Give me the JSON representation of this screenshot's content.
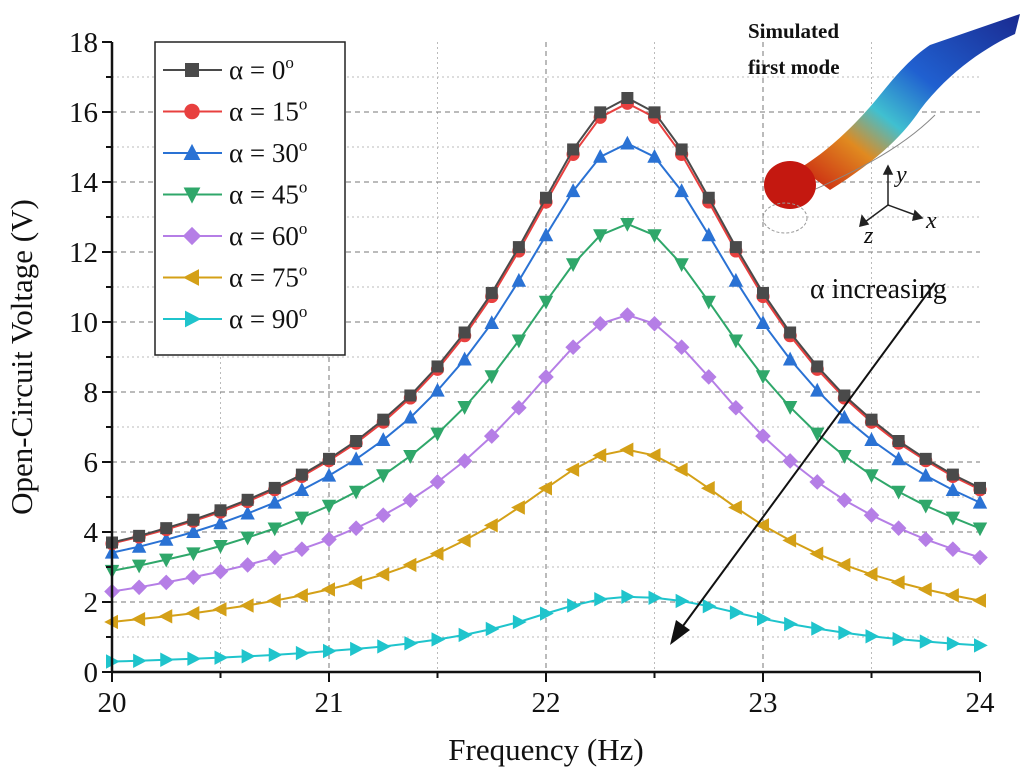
{
  "chart_data": {
    "type": "line",
    "xlabel": "Frequency (Hz)",
    "ylabel": "Open-Circuit Voltage (V)",
    "xlim": [
      20,
      24
    ],
    "ylim": [
      0,
      18
    ],
    "xticks": [
      "20",
      "21",
      "22",
      "23",
      "24"
    ],
    "yticks": [
      "0",
      "2",
      "4",
      "6",
      "8",
      "10",
      "12",
      "14",
      "16",
      "18"
    ],
    "grid": true,
    "legend_placement": "top-left",
    "x": [
      20,
      20.125,
      20.25,
      20.375,
      20.5,
      20.625,
      20.75,
      20.875,
      21,
      21.125,
      21.25,
      21.375,
      21.5,
      21.625,
      21.75,
      21.875,
      22,
      22.125,
      22.25,
      22.375,
      22.5,
      22.625,
      22.75,
      22.875,
      23,
      23.125,
      23.25,
      23.375,
      23.5,
      23.625,
      23.75,
      23.875,
      24
    ],
    "series": [
      {
        "name": "α = 0°",
        "label": "α = 0",
        "sup": "o",
        "color": "#4a4a4a",
        "marker": "square",
        "values": [
          3.7,
          3.89,
          4.11,
          4.35,
          4.62,
          4.92,
          5.26,
          5.64,
          6.09,
          6.6,
          7.21,
          7.9,
          8.73,
          9.7,
          10.83,
          12.14,
          13.55,
          14.93,
          15.99,
          16.4,
          15.99,
          14.93,
          13.55,
          12.14,
          10.83,
          9.7,
          8.73,
          7.9,
          7.21,
          6.6,
          6.09,
          5.64,
          5.26
        ]
      },
      {
        "name": "α = 15°",
        "label": "α = 15",
        "sup": "o",
        "color": "#e8403f",
        "marker": "circle",
        "values": [
          3.67,
          3.86,
          4.07,
          4.31,
          4.57,
          4.87,
          5.21,
          5.59,
          6.04,
          6.54,
          7.14,
          7.83,
          8.65,
          9.61,
          10.73,
          12.03,
          13.43,
          14.79,
          15.85,
          16.25,
          15.85,
          14.79,
          13.43,
          12.03,
          10.73,
          9.61,
          8.65,
          7.83,
          7.14,
          6.54,
          6.04,
          5.59,
          5.21
        ]
      },
      {
        "name": "α = 30°",
        "label": "α = 30",
        "sup": "o",
        "color": "#2a72d4",
        "marker": "triangle-up",
        "values": [
          3.41,
          3.58,
          3.78,
          4.0,
          4.25,
          4.53,
          4.84,
          5.2,
          5.61,
          6.08,
          6.63,
          7.27,
          8.04,
          8.93,
          9.97,
          11.18,
          12.48,
          13.74,
          14.72,
          15.1,
          14.72,
          13.74,
          12.48,
          11.18,
          9.97,
          8.93,
          8.04,
          7.27,
          6.63,
          6.08,
          5.61,
          5.2,
          4.84
        ]
      },
      {
        "name": "α = 45°",
        "label": "α = 45",
        "sup": "o",
        "color": "#2fa76a",
        "marker": "triangle-down",
        "values": [
          2.89,
          3.04,
          3.21,
          3.39,
          3.6,
          3.84,
          4.1,
          4.41,
          4.75,
          5.15,
          5.62,
          6.17,
          6.81,
          7.57,
          8.45,
          9.47,
          10.58,
          11.65,
          12.48,
          12.8,
          12.48,
          11.65,
          10.58,
          9.47,
          8.45,
          7.57,
          6.81,
          6.17,
          5.62,
          5.15,
          4.75,
          4.41,
          4.1
        ]
      },
      {
        "name": "α = 60°",
        "label": "α = 60",
        "sup": "o",
        "color": "#b57ee6",
        "marker": "diamond",
        "values": [
          2.3,
          2.42,
          2.56,
          2.71,
          2.87,
          3.06,
          3.27,
          3.51,
          3.79,
          4.11,
          4.48,
          4.91,
          5.43,
          6.03,
          6.74,
          7.55,
          8.43,
          9.28,
          9.95,
          10.2,
          9.95,
          9.28,
          8.43,
          7.55,
          6.74,
          6.03,
          5.43,
          4.91,
          4.48,
          4.11,
          3.79,
          3.51,
          3.27
        ]
      },
      {
        "name": "α = 75°",
        "label": "α = 75",
        "sup": "o",
        "color": "#d4a017",
        "marker": "triangle-left",
        "values": [
          1.43,
          1.51,
          1.59,
          1.68,
          1.79,
          1.9,
          2.04,
          2.19,
          2.36,
          2.56,
          2.79,
          3.06,
          3.38,
          3.76,
          4.19,
          4.7,
          5.25,
          5.78,
          6.19,
          6.35,
          6.19,
          5.78,
          5.25,
          4.7,
          4.19,
          3.76,
          3.38,
          3.06,
          2.79,
          2.56,
          2.36,
          2.19,
          2.04
        ]
      },
      {
        "name": "α = 90°",
        "label": "α = 90",
        "sup": "o",
        "color": "#1fc4cc",
        "marker": "triangle-right",
        "values": [
          0.3,
          0.32,
          0.35,
          0.38,
          0.41,
          0.45,
          0.49,
          0.54,
          0.6,
          0.66,
          0.73,
          0.82,
          0.93,
          1.06,
          1.23,
          1.43,
          1.67,
          1.9,
          2.08,
          2.15,
          2.12,
          2.03,
          1.88,
          1.7,
          1.52,
          1.37,
          1.24,
          1.12,
          1.02,
          0.94,
          0.87,
          0.81,
          0.76
        ]
      }
    ],
    "annotations": {
      "arrow_label": "α increasing",
      "inset_title_line1": "Simulated",
      "inset_title_line2": "first mode",
      "axis_y": "y",
      "axis_x": "x",
      "axis_z": "z"
    }
  }
}
